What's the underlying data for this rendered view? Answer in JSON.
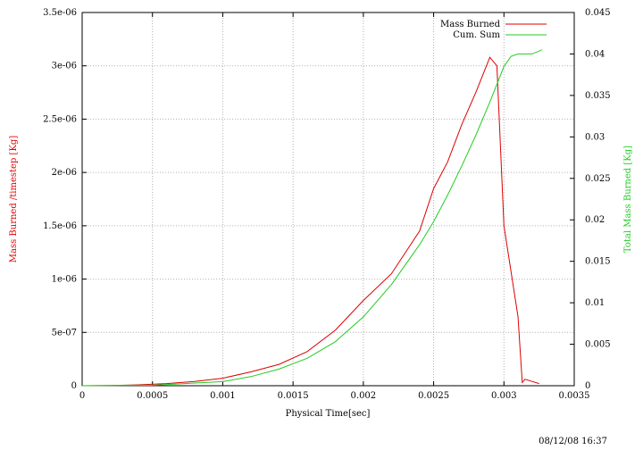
{
  "chart_data": {
    "type": "line",
    "xlabel": "Physical Time[sec]",
    "ylabel_left": "Mass Burned /timestep [Kg]",
    "ylabel_right": "Total Mass Burned [Kg]",
    "xlim": [
      0,
      0.0035
    ],
    "ylim_left": [
      0,
      3.5e-06
    ],
    "ylim_right": [
      0,
      0.045
    ],
    "grid": true,
    "legend_position": "top-right",
    "x_ticks": [
      "0",
      "0.0005",
      "0.001",
      "0.0015",
      "0.002",
      "0.0025",
      "0.003",
      "0.0035"
    ],
    "y_left_ticks": [
      "0",
      "5e-07",
      "1e-06",
      "1.5e-06",
      "2e-06",
      "2.5e-06",
      "3e-06",
      "3.5e-06"
    ],
    "y_right_ticks": [
      "0",
      "0.005",
      "0.01",
      "0.015",
      "0.02",
      "0.025",
      "0.03",
      "0.035",
      "0.04",
      "0.045"
    ],
    "series": [
      {
        "name": "Mass Burned",
        "axis": "left",
        "color": "#dd0000",
        "x": [
          0,
          0.0002,
          0.0004,
          0.0006,
          0.0008,
          0.001,
          0.0012,
          0.0014,
          0.0016,
          0.0018,
          0.002,
          0.0022,
          0.0024,
          0.0025,
          0.0026,
          0.0027,
          0.0028,
          0.0029,
          0.00295,
          0.003,
          0.0031,
          0.00313,
          0.00315,
          0.0032,
          0.00325
        ],
        "y": [
          0,
          2e-09,
          8e-09,
          2e-08,
          4e-08,
          7e-08,
          1.3e-07,
          2e-07,
          3.2e-07,
          5.2e-07,
          8e-07,
          1.05e-06,
          1.45e-06,
          1.85e-06,
          2.1e-06,
          2.45e-06,
          2.75e-06,
          3.08e-06,
          3e-06,
          1.5e-06,
          6.5e-07,
          3e-08,
          6e-08,
          4e-08,
          2e-08
        ]
      },
      {
        "name": "Cum. Sum",
        "axis": "right",
        "color": "#22cc22",
        "x": [
          0,
          0.0005,
          0.001,
          0.0012,
          0.0014,
          0.0016,
          0.0018,
          0.002,
          0.0022,
          0.0024,
          0.0025,
          0.0026,
          0.0027,
          0.0028,
          0.0029,
          0.003,
          0.00305,
          0.0031,
          0.0032,
          0.00327
        ],
        "y": [
          0,
          5e-05,
          0.0005,
          0.0011,
          0.002,
          0.0033,
          0.0053,
          0.0083,
          0.0122,
          0.017,
          0.0198,
          0.023,
          0.0265,
          0.0302,
          0.0342,
          0.0385,
          0.0397,
          0.04,
          0.04,
          0.0405
        ]
      }
    ]
  },
  "footer": {
    "timestamp": "08/12/08 16:37"
  }
}
